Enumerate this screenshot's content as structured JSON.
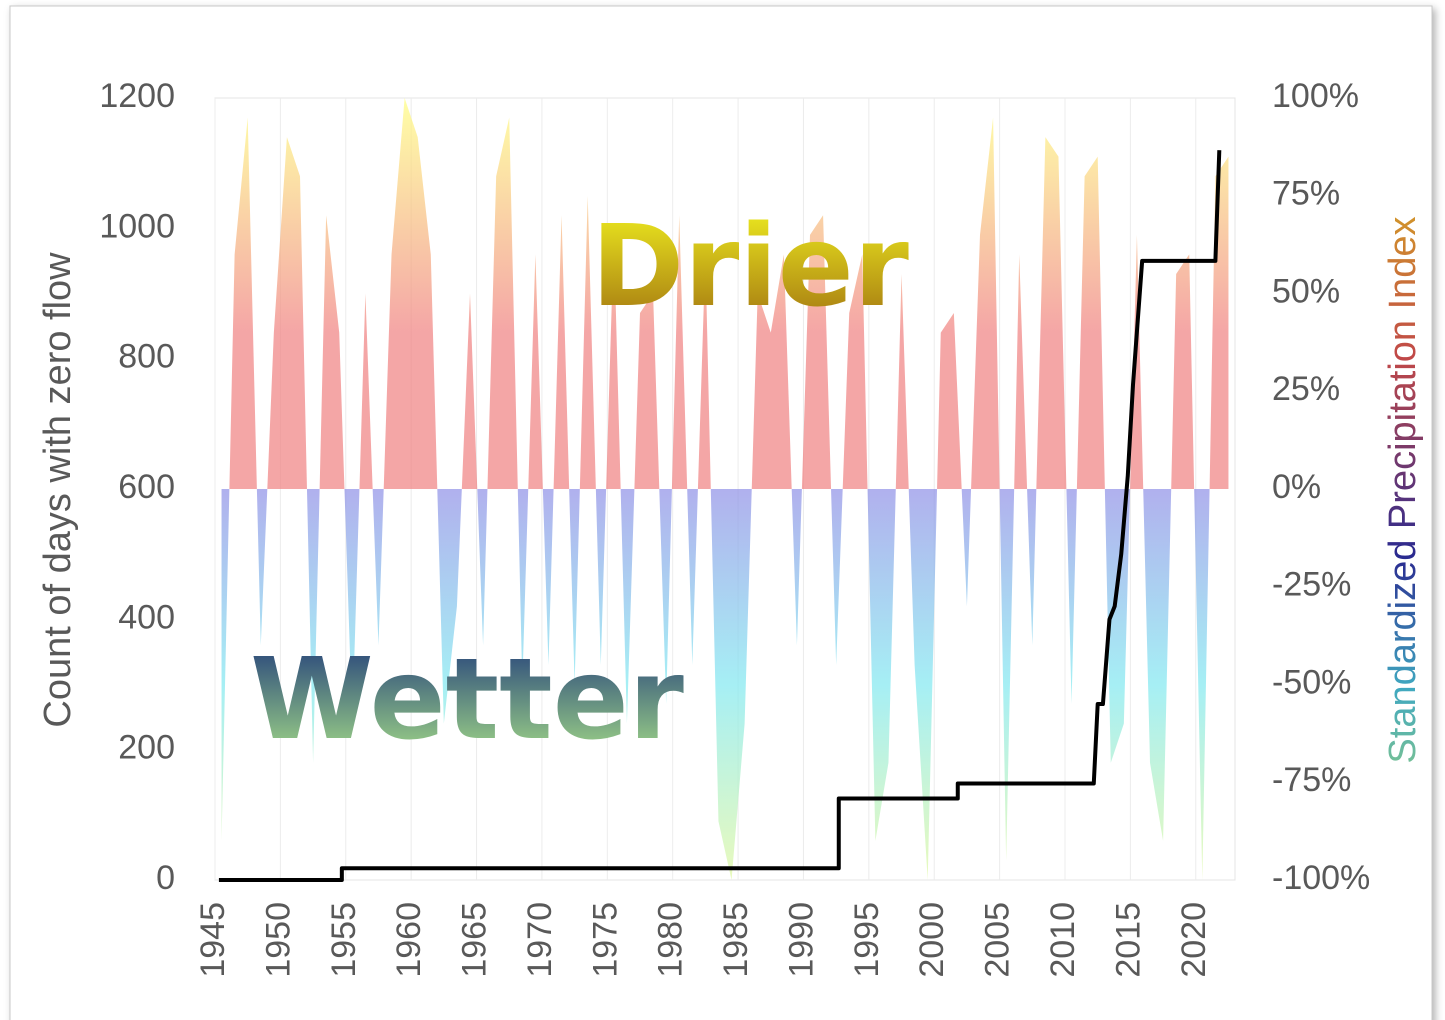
{
  "chart_data": {
    "type": "combo",
    "y_label": "Count of days with zero flow",
    "y2_label": "Standardized Precipitation Index",
    "annotations": [
      "Drier",
      "Wetter"
    ],
    "xlim": [
      1945,
      2023
    ],
    "xticks": [
      1945,
      1950,
      1955,
      1960,
      1965,
      1970,
      1975,
      1980,
      1985,
      1990,
      1995,
      2000,
      2005,
      2010,
      2015,
      2020
    ],
    "ylim": [
      0,
      1200
    ],
    "yticks": [
      0,
      200,
      400,
      600,
      800,
      1000,
      1200
    ],
    "y2lim": [
      -100,
      100
    ],
    "y2ticks": [
      {
        "value": -100,
        "label": "-100%"
      },
      {
        "value": -75,
        "label": "-75%"
      },
      {
        "value": -50,
        "label": "-50%"
      },
      {
        "value": -25,
        "label": "-25%"
      },
      {
        "value": 0,
        "label": "0%"
      },
      {
        "value": 25,
        "label": "25%"
      },
      {
        "value": 50,
        "label": "50%"
      },
      {
        "value": 75,
        "label": "75%"
      },
      {
        "value": 100,
        "label": "100%"
      }
    ],
    "grid": true,
    "series": [
      {
        "type": "area",
        "axis": "y2",
        "color_positive": "#f08080",
        "color_negative": "#8f8fe6",
        "x": [
          1945.5,
          1946.5,
          1947.5,
          1948.5,
          1949.5,
          1950.5,
          1951.5,
          1952.5,
          1953.5,
          1954.5,
          1955.5,
          1956.5,
          1957.5,
          1958.5,
          1959.5,
          1960.5,
          1961.5,
          1962.5,
          1963.5,
          1964.5,
          1965.5,
          1966.5,
          1967.5,
          1968.5,
          1969.5,
          1970.5,
          1971.5,
          1972.5,
          1973.5,
          1974.5,
          1975.5,
          1976.5,
          1977.5,
          1978.5,
          1979.5,
          1980.5,
          1981.5,
          1982.5,
          1983.5,
          1984.5,
          1985.5,
          1986.5,
          1987.5,
          1988.5,
          1989.5,
          1990.5,
          1991.5,
          1992.5,
          1993.5,
          1994.5,
          1995.5,
          1996.5,
          1997.5,
          1998.5,
          1999.5,
          2000.5,
          2001.5,
          2002.5,
          2003.5,
          2004.5,
          2005.5,
          2006.5,
          2007.5,
          2008.5,
          2009.5,
          2010.5,
          2011.5,
          2012.5,
          2013.5,
          2014.5,
          2015.5,
          2016.5,
          2017.5,
          2018.5,
          2019.5,
          2020.5,
          2021.5,
          2022.5
        ],
        "values": [
          -90,
          60,
          95,
          -40,
          40,
          90,
          80,
          -70,
          70,
          40,
          -60,
          50,
          -40,
          60,
          100,
          90,
          60,
          -60,
          -30,
          50,
          -40,
          80,
          95,
          -50,
          60,
          -45,
          70,
          -50,
          75,
          -45,
          65,
          -60,
          45,
          50,
          -55,
          70,
          -45,
          60,
          -85,
          -100,
          -60,
          50,
          40,
          60,
          -40,
          65,
          70,
          -45,
          45,
          60,
          -90,
          -70,
          55,
          -45,
          -100,
          40,
          45,
          -30,
          65,
          95,
          -95,
          60,
          -40,
          90,
          85,
          -55,
          80,
          85,
          -70,
          -60,
          65,
          -70,
          -90,
          55,
          60,
          -100,
          80,
          85
        ]
      },
      {
        "type": "line",
        "color": "#000000",
        "x": [
          1945.3,
          1954.7,
          1954.7,
          1992.7,
          1992.7,
          2001.8,
          2001.8,
          2012.2,
          2012.5,
          2012.9,
          2013.4,
          2013.8,
          2014.3,
          2014.8,
          2015.2,
          2015.9,
          2021.5,
          2021.8
        ],
        "values": [
          0,
          0,
          18,
          18,
          125,
          125,
          148,
          148,
          270,
          270,
          400,
          420,
          500,
          620,
          760,
          950,
          950,
          1120
        ]
      }
    ]
  }
}
